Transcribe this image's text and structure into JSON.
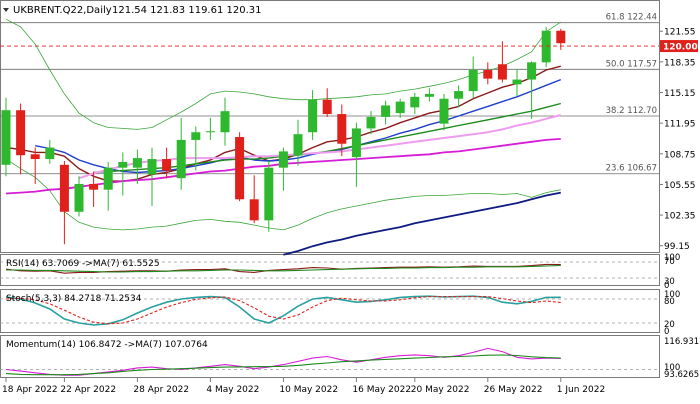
{
  "header": {
    "symbol": "UKBRENT.Q22,Daily",
    "ohlc": "121.54 121.83 119.61 120.31"
  },
  "colors": {
    "bull": "#2eb82e",
    "bear": "#e0211b",
    "ma_fast": "#8b1a1a",
    "ma_mid": "#1f3fc9",
    "ma_green": "#1c8a1c",
    "ma_magenta": "#d61cd6",
    "ma_pink": "#ee9cee",
    "ma_navy": "#0d1a80",
    "band": "#3aa63a",
    "level": "#6b6b6b",
    "price_line": "#e0211b",
    "price_tag_bg": "#e0211b"
  },
  "chart_data": [
    {
      "type": "candlestick",
      "panel": "price",
      "ylim": [
        98.6,
        124.6
      ],
      "y_ticks": [
        121.55,
        118.35,
        115.15,
        111.95,
        108.75,
        105.55,
        102.35,
        99.15
      ],
      "x_ticks": [
        "18 Apr 2022",
        "22 Apr 2022",
        "28 Apr 2022",
        "4 May 2022",
        "10 May 2022",
        "16 May 2022",
        "20 May 2022",
        "26 May 2022",
        "1 Jun 2022"
      ],
      "x_tick_index": [
        0,
        4,
        9,
        14,
        19,
        24,
        28,
        33,
        38
      ],
      "last_price": 120.0,
      "last_price_label": "120.00",
      "fib_levels": [
        {
          "label": "61.8 122.44",
          "value": 122.44
        },
        {
          "label": "50.0 117.57",
          "value": 117.57
        },
        {
          "label": "38.2 112.70",
          "value": 112.7
        },
        {
          "label": "23.6 106.67",
          "value": 106.67
        }
      ],
      "candles": [
        {
          "o": 107.6,
          "h": 114.6,
          "l": 106.4,
          "c": 113.3
        },
        {
          "o": 113.3,
          "h": 114.0,
          "l": 106.6,
          "c": 108.6
        },
        {
          "o": 108.7,
          "h": 109.4,
          "l": 105.6,
          "c": 108.2
        },
        {
          "o": 108.2,
          "h": 110.2,
          "l": 107.7,
          "c": 109.4
        },
        {
          "o": 107.6,
          "h": 108.0,
          "l": 99.3,
          "c": 102.7
        },
        {
          "o": 102.7,
          "h": 106.4,
          "l": 102.2,
          "c": 105.6
        },
        {
          "o": 105.6,
          "h": 106.9,
          "l": 103.2,
          "c": 105.0
        },
        {
          "o": 105.0,
          "h": 107.9,
          "l": 102.8,
          "c": 107.3
        },
        {
          "o": 107.3,
          "h": 108.9,
          "l": 104.4,
          "c": 107.9
        },
        {
          "o": 107.3,
          "h": 109.2,
          "l": 105.6,
          "c": 108.3
        },
        {
          "o": 106.6,
          "h": 109.4,
          "l": 103.3,
          "c": 108.2
        },
        {
          "o": 108.2,
          "h": 109.4,
          "l": 106.2,
          "c": 107.0
        },
        {
          "o": 106.2,
          "h": 112.5,
          "l": 105.0,
          "c": 110.2
        },
        {
          "o": 110.2,
          "h": 111.6,
          "l": 107.0,
          "c": 111.0
        },
        {
          "o": 111.0,
          "h": 112.5,
          "l": 110.2,
          "c": 111.1
        },
        {
          "o": 111.0,
          "h": 114.6,
          "l": 109.6,
          "c": 113.2
        },
        {
          "o": 110.5,
          "h": 111.0,
          "l": 103.8,
          "c": 104.0
        },
        {
          "o": 104.0,
          "h": 106.5,
          "l": 101.5,
          "c": 101.8
        },
        {
          "o": 101.8,
          "h": 108.0,
          "l": 100.6,
          "c": 107.3
        },
        {
          "o": 107.3,
          "h": 109.4,
          "l": 104.9,
          "c": 109.0
        },
        {
          "o": 108.6,
          "h": 112.3,
          "l": 107.5,
          "c": 110.8
        },
        {
          "o": 111.0,
          "h": 115.4,
          "l": 110.2,
          "c": 114.4
        },
        {
          "o": 114.4,
          "h": 115.6,
          "l": 112.6,
          "c": 112.9
        },
        {
          "o": 112.9,
          "h": 113.9,
          "l": 108.5,
          "c": 109.8
        },
        {
          "o": 108.4,
          "h": 112.0,
          "l": 105.3,
          "c": 111.4
        },
        {
          "o": 111.4,
          "h": 113.2,
          "l": 110.8,
          "c": 112.6
        },
        {
          "o": 112.6,
          "h": 114.3,
          "l": 111.8,
          "c": 113.8
        },
        {
          "o": 113.0,
          "h": 114.5,
          "l": 112.5,
          "c": 114.2
        },
        {
          "o": 113.6,
          "h": 115.1,
          "l": 112.9,
          "c": 114.7
        },
        {
          "o": 114.7,
          "h": 115.6,
          "l": 114.2,
          "c": 115.0
        },
        {
          "o": 111.9,
          "h": 115.0,
          "l": 111.2,
          "c": 114.5
        },
        {
          "o": 114.5,
          "h": 115.9,
          "l": 113.6,
          "c": 115.3
        },
        {
          "o": 115.3,
          "h": 118.9,
          "l": 114.5,
          "c": 117.5
        },
        {
          "o": 117.5,
          "h": 118.3,
          "l": 116.0,
          "c": 116.6
        },
        {
          "o": 118.1,
          "h": 120.5,
          "l": 116.2,
          "c": 116.5
        },
        {
          "o": 116.0,
          "h": 117.6,
          "l": 114.8,
          "c": 116.5
        },
        {
          "o": 116.5,
          "h": 118.4,
          "l": 112.4,
          "c": 118.3
        },
        {
          "o": 118.3,
          "h": 122.0,
          "l": 117.8,
          "c": 121.6
        },
        {
          "o": 121.6,
          "h": 121.8,
          "l": 119.6,
          "c": 120.3
        }
      ],
      "series": [
        {
          "role": "ma-fast",
          "color": "#8b1a1a",
          "values": [
            109.4,
            109.2,
            108.9,
            108.9,
            108.5,
            107.2,
            106.4,
            105.9,
            105.9,
            106.1,
            106.6,
            106.8,
            107.2,
            107.7,
            108.1,
            108.9,
            109.3,
            108.6,
            108.0,
            108.2,
            108.7,
            109.4,
            110.0,
            110.2,
            110.5,
            111.0,
            111.4,
            112.0,
            112.5,
            113.0,
            113.3,
            113.7,
            114.5,
            115.1,
            115.7,
            116.1,
            116.7,
            117.5,
            117.9
          ]
        },
        {
          "role": "ma-mid",
          "color": "#1f3fc9",
          "values": [
            null,
            null,
            109.6,
            109.3,
            108.9,
            108.1,
            107.6,
            107.2,
            106.9,
            106.8,
            106.9,
            107.0,
            107.2,
            107.5,
            107.8,
            108.2,
            108.4,
            108.1,
            108.0,
            108.1,
            108.3,
            108.7,
            109.0,
            109.2,
            109.6,
            110.0,
            110.4,
            110.9,
            111.3,
            111.8,
            112.2,
            112.7,
            113.2,
            113.7,
            114.2,
            114.7,
            115.3,
            115.9,
            116.5
          ]
        },
        {
          "role": "ma-green",
          "color": "#1c8a1c",
          "values": [
            null,
            null,
            null,
            null,
            null,
            null,
            106.8,
            106.9,
            107.0,
            107.1,
            107.2,
            107.3,
            107.5,
            107.7,
            107.9,
            108.1,
            108.2,
            108.2,
            108.3,
            108.5,
            108.6,
            108.8,
            109.0,
            109.3,
            109.6,
            109.9,
            110.2,
            110.5,
            110.8,
            111.1,
            111.4,
            111.7,
            112.0,
            112.3,
            112.6,
            112.9,
            113.2,
            113.6,
            114.0
          ]
        },
        {
          "role": "ma-magenta",
          "color": "#d61cd6",
          "values": [
            104.6,
            104.7,
            104.8,
            105.0,
            105.1,
            105.3,
            105.5,
            105.7,
            105.9,
            106.0,
            106.1,
            106.3,
            106.5,
            106.7,
            106.9,
            107.0,
            107.2,
            107.4,
            107.5,
            107.7,
            107.8,
            107.9,
            108.0,
            108.1,
            108.2,
            108.3,
            108.4,
            108.5,
            108.6,
            108.7,
            108.9,
            109.0,
            109.2,
            109.4,
            109.6,
            109.8,
            110.0,
            110.2,
            110.3
          ]
        },
        {
          "role": "ma-pink",
          "color": "#ee9cee",
          "values": [
            null,
            null,
            null,
            null,
            null,
            106.2,
            106.7,
            107.1,
            107.5,
            107.8,
            108.0,
            108.1,
            108.3,
            108.3,
            108.3,
            108.3,
            108.4,
            108.5,
            108.5,
            108.6,
            108.7,
            108.8,
            108.9,
            109.0,
            109.2,
            109.4,
            109.6,
            109.8,
            110.0,
            110.2,
            110.4,
            110.6,
            110.8,
            111.0,
            111.3,
            111.7,
            112.0,
            112.4,
            112.8
          ]
        },
        {
          "role": "ma-navy",
          "color": "#0d1a80",
          "values": [
            null,
            null,
            null,
            null,
            null,
            null,
            null,
            null,
            null,
            null,
            null,
            null,
            null,
            null,
            null,
            null,
            null,
            null,
            null,
            98.2,
            98.6,
            99.1,
            99.5,
            99.8,
            100.2,
            100.5,
            100.8,
            101.1,
            101.5,
            101.8,
            102.1,
            102.4,
            102.7,
            103.0,
            103.3,
            103.6,
            104.0,
            104.4,
            104.7
          ]
        },
        {
          "role": "bb-upper",
          "color": "#3aa63a",
          "values": [
            122.8,
            122.0,
            120.2,
            117.5,
            115.0,
            113.0,
            112.0,
            111.5,
            111.4,
            111.3,
            111.5,
            112.3,
            113.1,
            114.0,
            115.0,
            115.3,
            115.2,
            115.0,
            114.7,
            114.5,
            114.4,
            114.4,
            114.5,
            114.6,
            114.7,
            114.9,
            115.0,
            115.3,
            115.5,
            115.8,
            116.1,
            116.5,
            117.0,
            117.4,
            117.9,
            118.6,
            119.4,
            121.5,
            122.5
          ]
        },
        {
          "role": "bb-lower",
          "color": "#3aa63a",
          "values": [
            108.2,
            107.2,
            106.3,
            104.9,
            102.7,
            101.6,
            101.1,
            100.9,
            100.8,
            100.9,
            101.1,
            101.2,
            101.5,
            101.8,
            101.9,
            101.7,
            101.6,
            101.3,
            101.0,
            100.8,
            101.3,
            102.0,
            102.6,
            103.0,
            103.3,
            103.6,
            103.9,
            104.1,
            104.3,
            104.4,
            104.4,
            104.5,
            104.6,
            104.6,
            104.5,
            104.6,
            104.2,
            104.7,
            105.0
          ]
        }
      ]
    },
    {
      "type": "line",
      "panel": "rsi",
      "legend": "RSI(14) 63.7069  ->MA(7) 61.5525",
      "ylim": [
        15,
        85
      ],
      "y_ticks": [
        "100",
        "70",
        "30",
        "0"
      ],
      "levels": [
        70,
        30
      ],
      "series": [
        {
          "role": "rsi",
          "color": "#8b1a1a",
          "values": [
            52,
            48,
            47,
            48,
            42,
            44,
            44,
            46,
            47,
            48,
            48,
            47,
            50,
            51,
            51,
            53,
            46,
            44,
            49,
            51,
            53,
            56,
            55,
            52,
            54,
            55,
            56,
            57,
            57,
            58,
            57,
            58,
            60,
            59,
            59,
            59,
            61,
            64,
            63.7
          ]
        },
        {
          "role": "rsi-ma",
          "color": "#1c8a1c",
          "values": [
            50,
            50,
            49,
            49,
            48,
            47,
            46,
            45,
            45,
            46,
            46,
            47,
            48,
            48,
            49,
            50,
            50,
            49,
            48,
            48,
            49,
            50,
            51,
            52,
            53,
            54,
            54,
            55,
            55,
            56,
            56,
            57,
            57,
            58,
            58,
            58,
            59,
            60,
            61.6
          ]
        }
      ]
    },
    {
      "type": "line",
      "panel": "stoch",
      "legend": "Stoch(5,3,3) 84.2718  71.2534",
      "ylim": [
        0,
        100
      ],
      "y_ticks": [
        "100",
        "80",
        "20",
        "0"
      ],
      "levels": [
        80,
        20
      ],
      "series": [
        {
          "role": "stoch-k",
          "color": "#2aa0a0",
          "values": [
            85,
            80,
            70,
            55,
            30,
            20,
            15,
            18,
            28,
            45,
            60,
            72,
            80,
            84,
            86,
            84,
            60,
            30,
            20,
            38,
            62,
            80,
            84,
            78,
            72,
            74,
            78,
            84,
            86,
            87,
            85,
            86,
            87,
            84,
            72,
            68,
            74,
            84,
            84.3
          ]
        },
        {
          "role": "stoch-d",
          "color": "#e0211b",
          "values": [
            80,
            82,
            78,
            68,
            52,
            35,
            22,
            18,
            20,
            30,
            45,
            60,
            71,
            79,
            83,
            85,
            76,
            58,
            37,
            30,
            40,
            60,
            76,
            82,
            78,
            75,
            75,
            78,
            83,
            86,
            86,
            86,
            86,
            86,
            81,
            75,
            71,
            75,
            71.3
          ]
        }
      ]
    },
    {
      "type": "line",
      "panel": "momentum",
      "legend": "Momentum(14) 106.8472  ->MA(7) 107.0764",
      "ylim": [
        96,
        120
      ],
      "y_ticks": [
        "116.9317",
        "100",
        "93.6265"
      ],
      "levels": [
        100
      ],
      "series": [
        {
          "role": "momentum",
          "color": "#d61cd6",
          "values": [
            100,
            99,
            98,
            97,
            96.5,
            96.5,
            97.5,
            98.5,
            99.5,
            101,
            101.5,
            100.5,
            100,
            101,
            102,
            103,
            102,
            100.5,
            101.5,
            103,
            105,
            107,
            108,
            106,
            104.5,
            106,
            107.5,
            108.5,
            109,
            108.5,
            107.5,
            108.5,
            110.5,
            113,
            111,
            107.5,
            106.5,
            107,
            106.8
          ]
        },
        {
          "role": "momentum-ma",
          "color": "#1c8a1c",
          "values": [
            97.5,
            97,
            96.8,
            96.8,
            96.8,
            97,
            97.5,
            98,
            98.8,
            99.5,
            100,
            100.2,
            100.5,
            100.8,
            101.2,
            101.5,
            101.6,
            101.7,
            101.8,
            102,
            102.5,
            103.3,
            104,
            104.8,
            105.3,
            105.8,
            106.2,
            106.6,
            107,
            107.4,
            107.8,
            108,
            108.3,
            108.8,
            108.9,
            108.6,
            107.8,
            107.3,
            107.1
          ]
        }
      ]
    }
  ]
}
